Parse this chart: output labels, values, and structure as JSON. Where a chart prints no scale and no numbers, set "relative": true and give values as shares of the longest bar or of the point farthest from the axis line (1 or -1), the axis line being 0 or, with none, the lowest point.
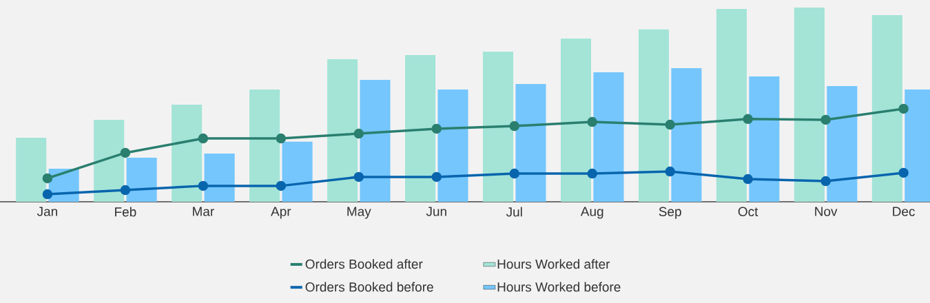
{
  "chart_data": {
    "type": "bar",
    "relative": true,
    "legend": "bottom",
    "marker": "circle",
    "categories": [
      "Jan",
      "Feb",
      "Mar",
      "Apr",
      "May",
      "Jun",
      "Jul",
      "Aug",
      "Sep",
      "Oct",
      "Nov",
      "Dec"
    ],
    "series": [
      {
        "name": "Orders Booked after",
        "type": "line",
        "color": "#2a7f6f",
        "values": [
          0.121,
          0.252,
          0.326,
          0.326,
          0.351,
          0.376,
          0.39,
          0.411,
          0.397,
          0.426,
          0.422,
          0.479
        ]
      },
      {
        "name": "Hours Worked after",
        "color": "#a3e4d7",
        "values": [
          0.33,
          0.422,
          0.5,
          0.578,
          0.734,
          0.755,
          0.773,
          0.84,
          0.887,
          0.993,
          1,
          0.961
        ]
      },
      {
        "name": "Orders Booked before",
        "type": "line",
        "color": "#0865ad",
        "values": [
          0.039,
          0.06,
          0.082,
          0.082,
          0.128,
          0.128,
          0.145,
          0.145,
          0.156,
          0.117,
          0.106,
          0.149
        ]
      },
      {
        "name": "Hours Worked before",
        "color": "#74c6fd",
        "values": [
          0.17,
          0.227,
          0.248,
          0.309,
          0.628,
          0.578,
          0.606,
          0.667,
          0.688,
          0.645,
          0.596,
          0.578
        ]
      }
    ]
  }
}
